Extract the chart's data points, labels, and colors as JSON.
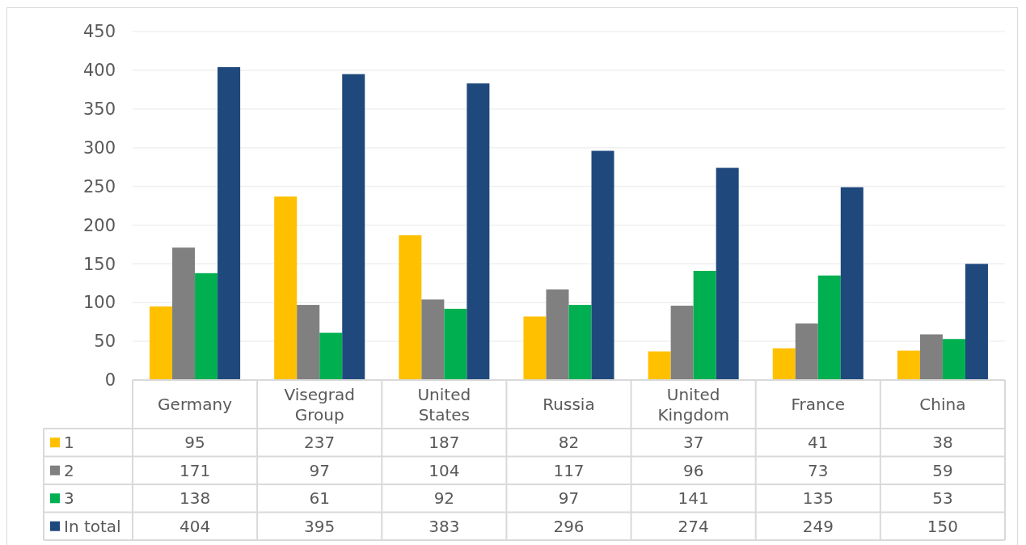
{
  "chart_data": {
    "type": "bar",
    "categories": [
      "Germany",
      "Visegrad Group",
      "United States",
      "Russia",
      "United Kingdom",
      "France",
      "China"
    ],
    "series": [
      {
        "name": "1",
        "color": "#ffc000",
        "values": [
          95,
          237,
          187,
          82,
          37,
          41,
          38
        ]
      },
      {
        "name": "2",
        "color": "#808080",
        "values": [
          171,
          97,
          104,
          117,
          96,
          73,
          59
        ]
      },
      {
        "name": "3",
        "color": "#00b050",
        "values": [
          138,
          61,
          92,
          97,
          141,
          135,
          53
        ]
      },
      {
        "name": "In total",
        "color": "#1f497d",
        "values": [
          404,
          395,
          383,
          296,
          274,
          249,
          150
        ]
      }
    ],
    "ylim": [
      0,
      450
    ],
    "yticks": [
      0,
      50,
      100,
      150,
      200,
      250,
      300,
      350,
      400,
      450
    ],
    "grid": "y",
    "legend": "bottom",
    "data_labels": true
  }
}
